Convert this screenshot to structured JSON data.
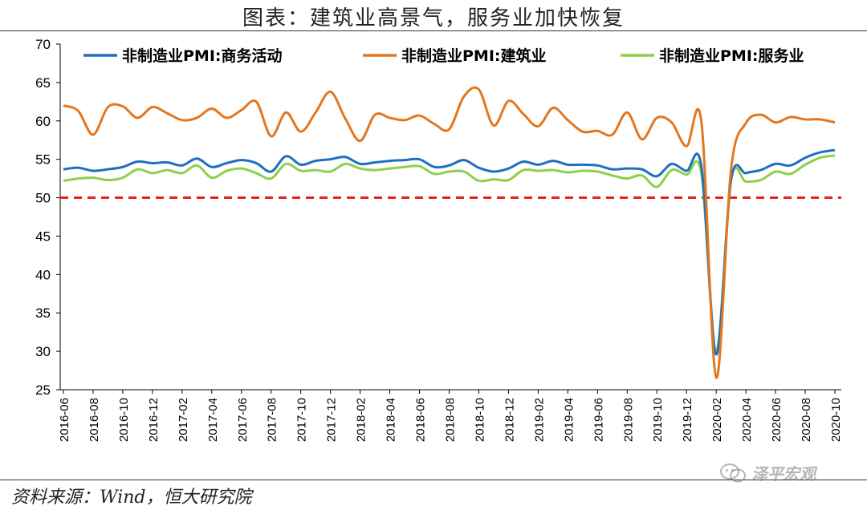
{
  "title": "图表：建筑业高景气，服务业加快恢复",
  "source": "资料来源：Wind，恒大研究院",
  "watermark": "泽平宏观",
  "watermark_icon": "wechat-icon",
  "colors": {
    "business_activity": "#1f6fbf",
    "construction": "#e3771f",
    "services": "#8dd04a",
    "threshold": "#e8201b",
    "axis": "#000000"
  },
  "chart_data": {
    "type": "line",
    "xlabel": "",
    "ylabel": "",
    "ylim": [
      25,
      70
    ],
    "yticks": [
      25,
      30,
      35,
      40,
      45,
      50,
      55,
      60,
      65,
      70
    ],
    "grid": false,
    "legend_position": "top",
    "x_tick_labels": [
      "2016-06",
      "2016-08",
      "2016-10",
      "2016-12",
      "2017-02",
      "2017-04",
      "2017-06",
      "2017-08",
      "2017-10",
      "2017-12",
      "2018-02",
      "2018-04",
      "2018-06",
      "2018-08",
      "2018-10",
      "2018-12",
      "2019-02",
      "2019-04",
      "2019-06",
      "2019-08",
      "2019-10",
      "2019-12",
      "2020-02",
      "2020-04",
      "2020-06",
      "2020-08",
      "2020-10"
    ],
    "x": [
      "2016-06",
      "2016-07",
      "2016-08",
      "2016-09",
      "2016-10",
      "2016-11",
      "2016-12",
      "2017-01",
      "2017-02",
      "2017-03",
      "2017-04",
      "2017-05",
      "2017-06",
      "2017-07",
      "2017-08",
      "2017-09",
      "2017-10",
      "2017-11",
      "2017-12",
      "2018-01",
      "2018-02",
      "2018-03",
      "2018-04",
      "2018-05",
      "2018-06",
      "2018-07",
      "2018-08",
      "2018-09",
      "2018-10",
      "2018-11",
      "2018-12",
      "2019-01",
      "2019-02",
      "2019-03",
      "2019-04",
      "2019-05",
      "2019-06",
      "2019-07",
      "2019-08",
      "2019-09",
      "2019-10",
      "2019-11",
      "2019-12",
      "2020-01",
      "2020-02",
      "2020-03",
      "2020-04",
      "2020-05",
      "2020-06",
      "2020-07",
      "2020-08",
      "2020-09",
      "2020-10"
    ],
    "reference_line": {
      "value": 50,
      "style": "dashed"
    },
    "series": [
      {
        "name": "非制造业PMI:商务活动",
        "color_key": "business_activity",
        "values": [
          53.7,
          53.9,
          53.5,
          53.7,
          54.0,
          54.7,
          54.5,
          54.6,
          54.2,
          55.1,
          54.0,
          54.5,
          54.9,
          54.5,
          53.4,
          55.4,
          54.3,
          54.8,
          55.0,
          55.3,
          54.4,
          54.6,
          54.8,
          54.9,
          55.0,
          54.0,
          54.2,
          54.9,
          53.9,
          53.4,
          53.8,
          54.7,
          54.3,
          54.8,
          54.3,
          54.3,
          54.2,
          53.7,
          53.8,
          53.7,
          52.8,
          54.4,
          53.5,
          54.1,
          29.6,
          52.3,
          53.2,
          53.6,
          54.4,
          54.2,
          55.2,
          55.9,
          56.2
        ]
      },
      {
        "name": "非制造业PMI:建筑业",
        "color_key": "construction",
        "values": [
          62.0,
          61.3,
          58.2,
          61.8,
          61.9,
          60.4,
          61.8,
          61.0,
          60.1,
          60.4,
          61.6,
          60.4,
          61.4,
          62.5,
          58.0,
          61.1,
          58.6,
          61.1,
          63.8,
          60.3,
          57.4,
          60.8,
          60.4,
          60.1,
          60.7,
          59.6,
          58.9,
          63.2,
          64.1,
          59.4,
          62.6,
          60.9,
          59.3,
          61.7,
          60.1,
          58.6,
          58.7,
          58.2,
          61.1,
          57.6,
          60.4,
          59.8,
          56.7,
          59.9,
          26.6,
          53.7,
          59.7,
          60.8,
          59.8,
          60.5,
          60.2,
          60.2,
          59.8
        ]
      },
      {
        "name": "非制造业PMI:服务业",
        "color_key": "services",
        "values": [
          52.2,
          52.5,
          52.6,
          52.3,
          52.6,
          53.7,
          53.2,
          53.6,
          53.2,
          54.2,
          52.6,
          53.5,
          53.8,
          53.2,
          52.5,
          54.4,
          53.5,
          53.6,
          53.4,
          54.4,
          53.8,
          53.6,
          53.8,
          54.0,
          54.1,
          53.1,
          53.4,
          53.4,
          52.2,
          52.4,
          52.3,
          53.6,
          53.5,
          53.6,
          53.3,
          53.5,
          53.4,
          52.9,
          52.5,
          52.9,
          51.4,
          53.6,
          53.0,
          53.1,
          30.1,
          52.3,
          52.1,
          52.3,
          53.4,
          53.1,
          54.3,
          55.2,
          55.5
        ]
      }
    ]
  }
}
